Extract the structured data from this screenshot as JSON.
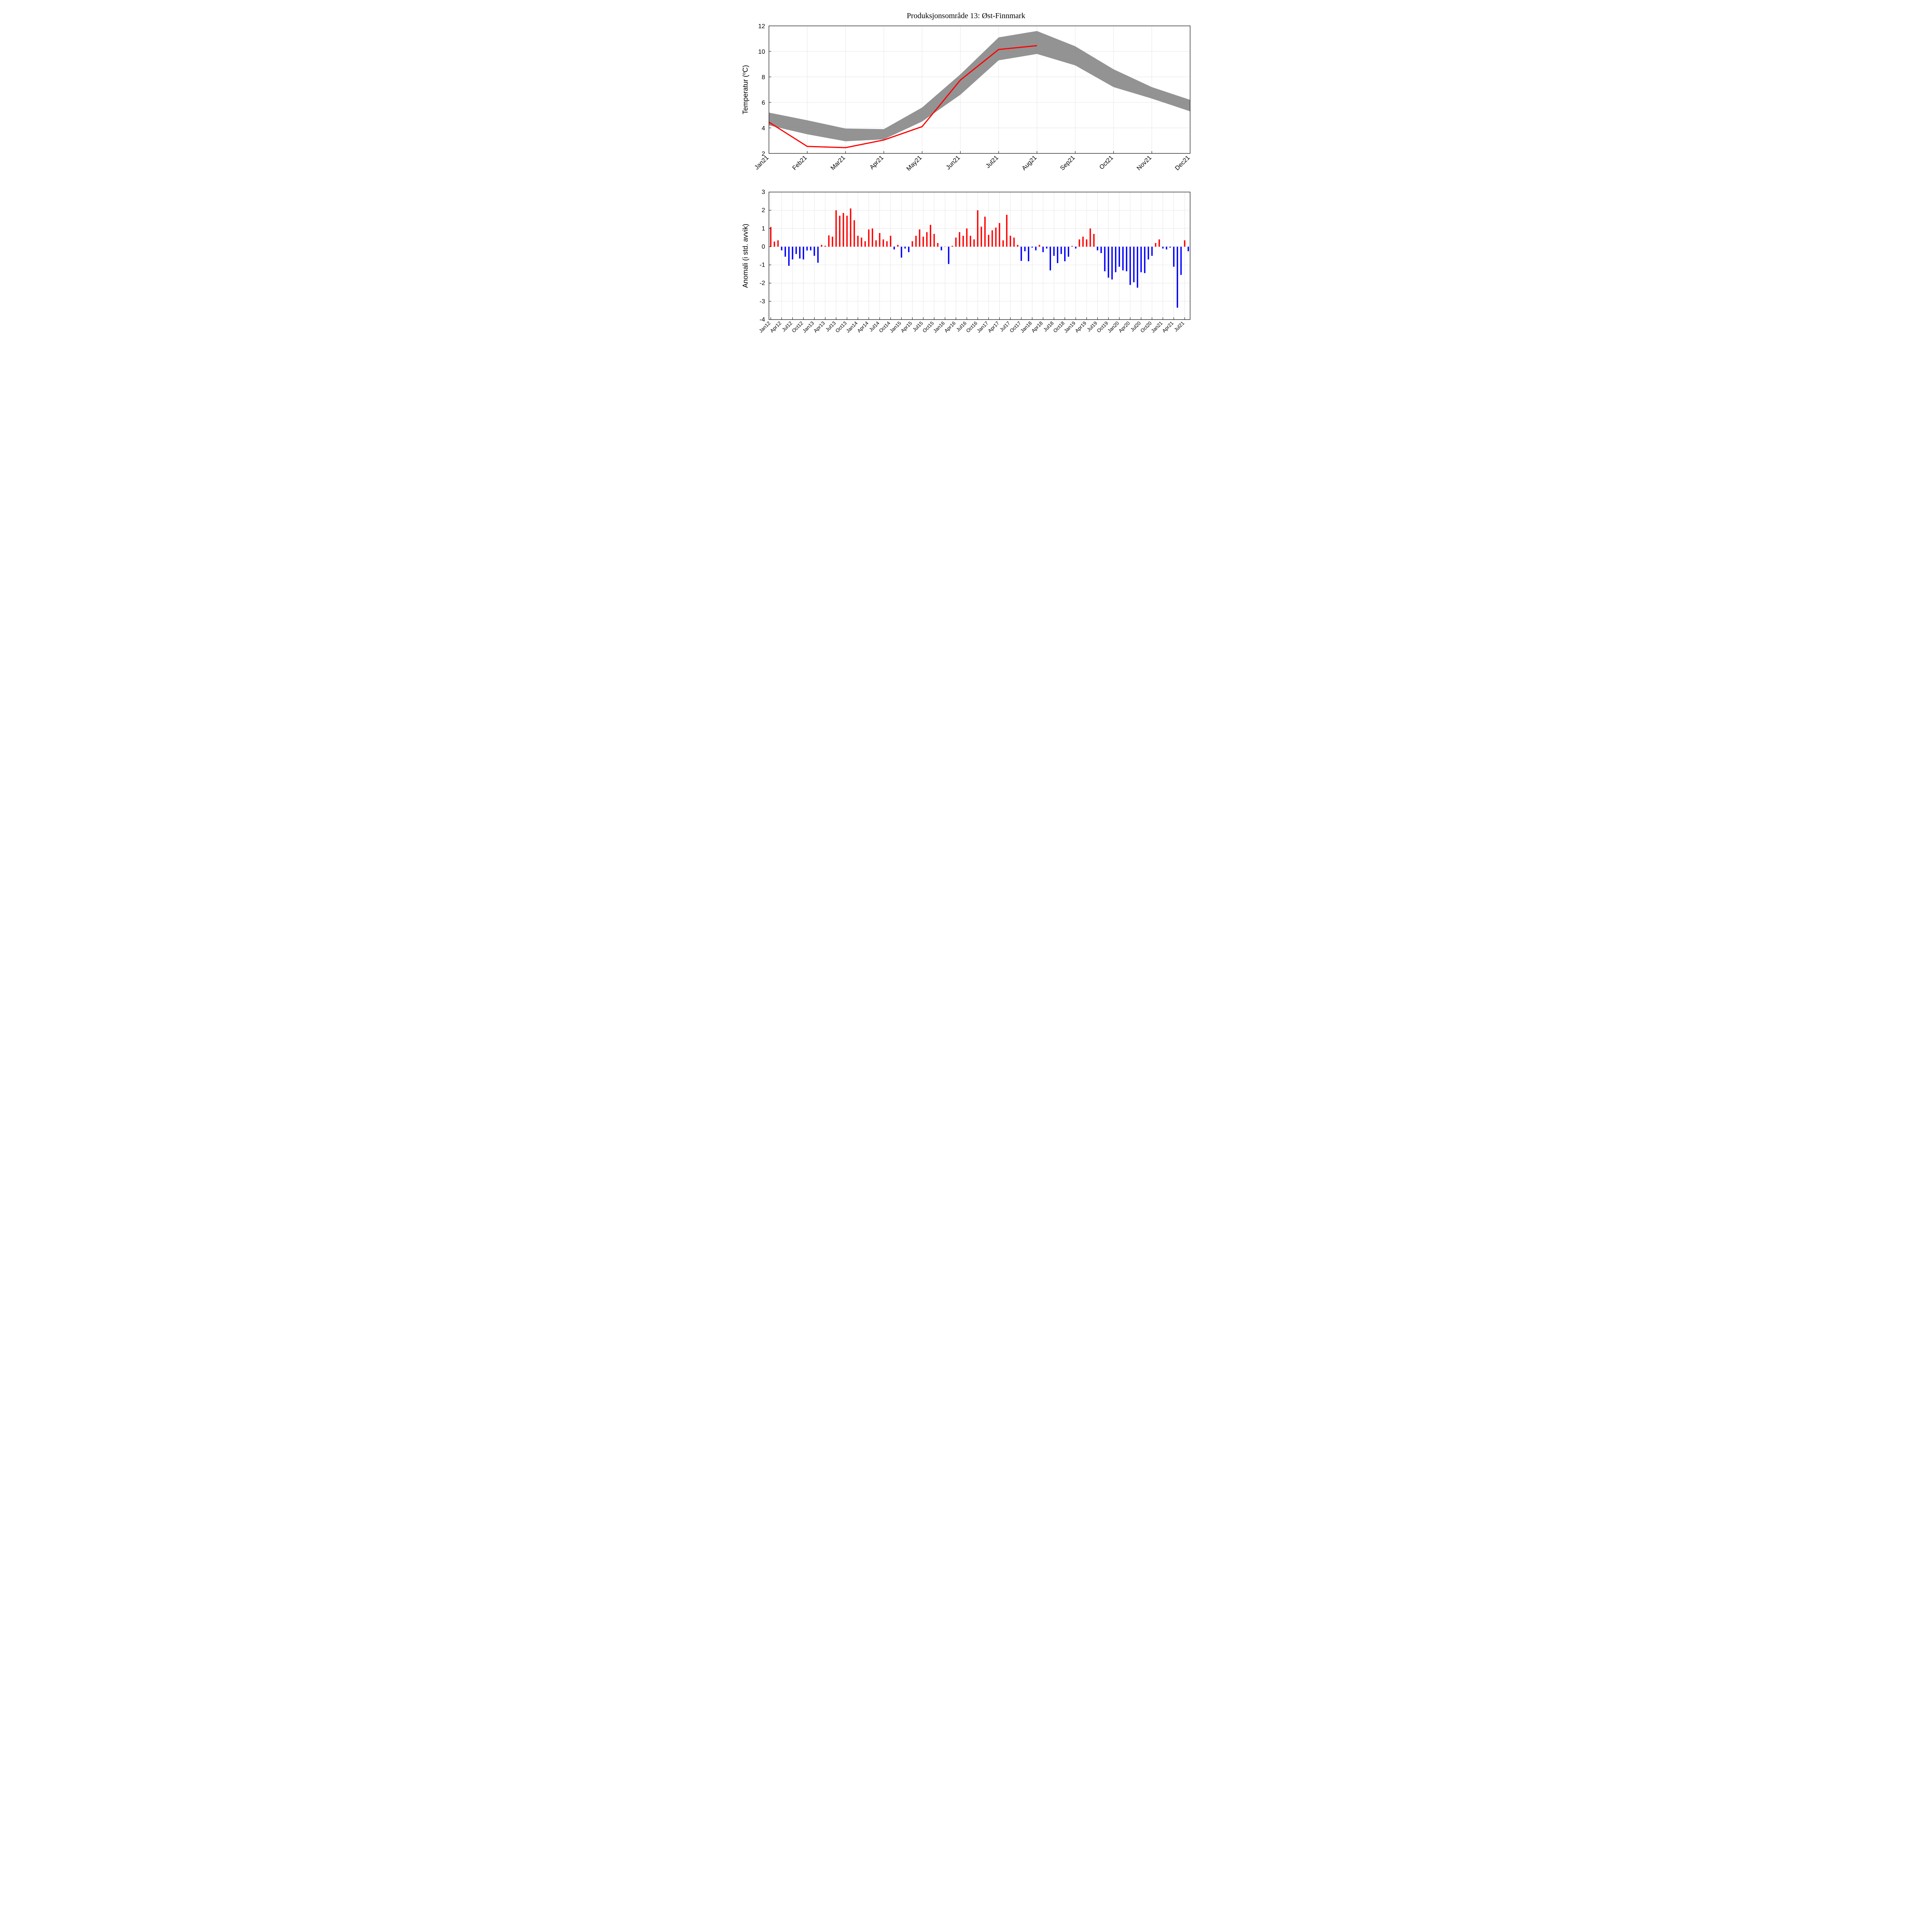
{
  "title": "Produksjonsområde 13:  Øst-Finnmark",
  "colors": {
    "band": "#808080",
    "band_opacity": 0.85,
    "red": "#ff0000",
    "blue": "#0000ff",
    "grid": "#e6e6e6",
    "axis": "#000000",
    "bg": "#ffffff"
  },
  "temp_chart": {
    "type": "line_with_band",
    "ylabel": "Temperatur (°C)",
    "ylim": [
      2,
      12
    ],
    "yticks": [
      2,
      4,
      6,
      8,
      10,
      12
    ],
    "xticks": [
      "Jan21",
      "Feb21",
      "Mar21",
      "Apr21",
      "May21",
      "Jun21",
      "Jul21",
      "Aug21",
      "Sep21",
      "Oct21",
      "Nov21",
      "Dec21"
    ],
    "band_upper": [
      5.2,
      4.6,
      3.95,
      3.9,
      5.6,
      8.2,
      11.1,
      11.6,
      10.4,
      8.6,
      7.2,
      6.2
    ],
    "band_lower": [
      4.2,
      3.5,
      2.95,
      3.1,
      4.5,
      6.6,
      9.3,
      9.8,
      8.9,
      7.2,
      6.3,
      5.3
    ],
    "red_line": [
      4.45,
      2.55,
      2.45,
      3.05,
      4.1,
      7.75,
      10.15,
      10.45
    ],
    "line_width": 3,
    "title_fontsize": 20,
    "label_fontsize": 18,
    "tick_fontsize": 16
  },
  "anomaly_chart": {
    "type": "bar_bicolor",
    "ylabel": "Anomali (i std. avvik)",
    "ylim": [
      -4,
      3
    ],
    "yticks": [
      -4,
      -3,
      -2,
      -1,
      0,
      1,
      2,
      3
    ],
    "xticks": [
      "Jan12",
      "Apr12",
      "Jul12",
      "Oct12",
      "Jan13",
      "Apr13",
      "Jul13",
      "Oct13",
      "Jan14",
      "Apr14",
      "Jul14",
      "Oct14",
      "Jan15",
      "Apr15",
      "Jul15",
      "Oct15",
      "Jan16",
      "Apr16",
      "Jul16",
      "Oct16",
      "Jan17",
      "Apr17",
      "Jul17",
      "Oct17",
      "Jan18",
      "Apr18",
      "Jul18",
      "Oct18",
      "Jan19",
      "Apr19",
      "Jul19",
      "Oct19",
      "Jan20",
      "Apr20",
      "Jul20",
      "Oct20",
      "Jan21",
      "Apr21",
      "Jul21"
    ],
    "n_bars": 116,
    "bar_width_ratio": 0.38,
    "values": [
      1.08,
      0.28,
      0.35,
      -0.2,
      -0.55,
      -1.05,
      -0.7,
      -0.4,
      -0.65,
      -0.7,
      -0.21,
      -0.2,
      -0.5,
      -0.88,
      0.1,
      0.05,
      0.62,
      0.55,
      2.0,
      1.7,
      1.85,
      1.7,
      2.1,
      1.45,
      0.6,
      0.5,
      0.3,
      0.95,
      1.0,
      0.35,
      0.75,
      0.4,
      0.3,
      0.6,
      -0.15,
      0.1,
      -0.6,
      -0.1,
      -0.3,
      0.3,
      0.6,
      0.95,
      0.55,
      0.8,
      1.2,
      0.7,
      0.2,
      -0.2,
      0.0,
      -0.95,
      0.05,
      0.5,
      0.8,
      0.6,
      1.0,
      0.6,
      0.4,
      2.0,
      1.1,
      1.65,
      0.65,
      0.9,
      1.05,
      1.3,
      0.35,
      1.75,
      0.6,
      0.5,
      0.1,
      -0.78,
      -0.25,
      -0.8,
      -0.05,
      -0.2,
      0.1,
      -0.3,
      -0.1,
      -1.3,
      -0.5,
      -0.9,
      -0.4,
      -0.8,
      -0.55,
      0.04,
      -0.1,
      0.4,
      0.55,
      0.4,
      1.0,
      0.7,
      -0.2,
      -0.35,
      -1.35,
      -1.7,
      -1.8,
      -1.4,
      -1.1,
      -1.3,
      -1.35,
      -2.1,
      -1.95,
      -2.25,
      -1.4,
      -1.45,
      -0.7,
      -0.5,
      0.2,
      0.4,
      -0.1,
      -0.15,
      -0.05,
      -1.1,
      -3.35,
      -1.55,
      0.35,
      -0.25
    ],
    "label_fontsize": 18,
    "tick_fontsize": 13
  }
}
